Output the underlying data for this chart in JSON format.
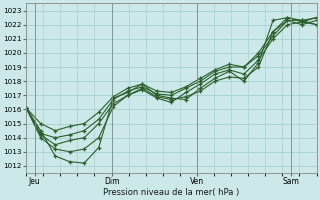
{
  "xlabel": "Pression niveau de la mer( hPa )",
  "bg_color": "#cce8e8",
  "grid_color": "#99cccc",
  "line_color": "#2a5f2a",
  "ylim": [
    1011.5,
    1023.5
  ],
  "xlim": [
    0,
    17
  ],
  "xtick_labels": [
    "Jeu",
    "Dim",
    "Ven",
    "Sam"
  ],
  "xtick_positions": [
    0.5,
    5.0,
    10.0,
    15.5
  ],
  "ytick_values": [
    1012,
    1013,
    1014,
    1015,
    1016,
    1017,
    1018,
    1019,
    1020,
    1021,
    1022,
    1023
  ],
  "vline_positions": [
    0.5,
    5.0,
    10.0,
    15.5
  ],
  "series": [
    [
      1016.1,
      1014.5,
      1012.7,
      1012.3,
      1012.2,
      1013.3,
      1016.8,
      1017.2,
      1017.8,
      1017.0,
      1016.8,
      1016.7,
      1017.5,
      1018.2,
      1018.7,
      1018.0,
      1019.3,
      1022.3,
      1022.5,
      1022.2,
      1022.5
    ],
    [
      1016.1,
      1014.2,
      1013.5,
      1013.8,
      1014.0,
      1015.0,
      1016.4,
      1017.0,
      1017.4,
      1016.8,
      1016.5,
      1017.2,
      1017.8,
      1018.5,
      1018.8,
      1018.5,
      1019.5,
      1021.0,
      1022.0,
      1022.2,
      1022.0
    ],
    [
      1016.1,
      1014.3,
      1014.0,
      1014.2,
      1014.5,
      1015.3,
      1016.7,
      1017.3,
      1017.6,
      1017.1,
      1017.0,
      1017.5,
      1018.0,
      1018.7,
      1019.0,
      1019.0,
      1019.8,
      1021.2,
      1022.3,
      1022.3,
      1022.0
    ],
    [
      1016.1,
      1014.0,
      1013.2,
      1013.0,
      1013.2,
      1014.0,
      1016.2,
      1017.0,
      1017.5,
      1016.9,
      1016.7,
      1016.9,
      1017.3,
      1018.0,
      1018.3,
      1018.2,
      1019.0,
      1021.5,
      1022.5,
      1022.3,
      1022.5
    ],
    [
      1016.1,
      1015.0,
      1014.5,
      1014.8,
      1015.0,
      1015.8,
      1016.9,
      1017.5,
      1017.8,
      1017.3,
      1017.2,
      1017.6,
      1018.2,
      1018.8,
      1019.2,
      1019.0,
      1020.0,
      1021.5,
      1022.3,
      1022.0,
      1022.3
    ]
  ]
}
